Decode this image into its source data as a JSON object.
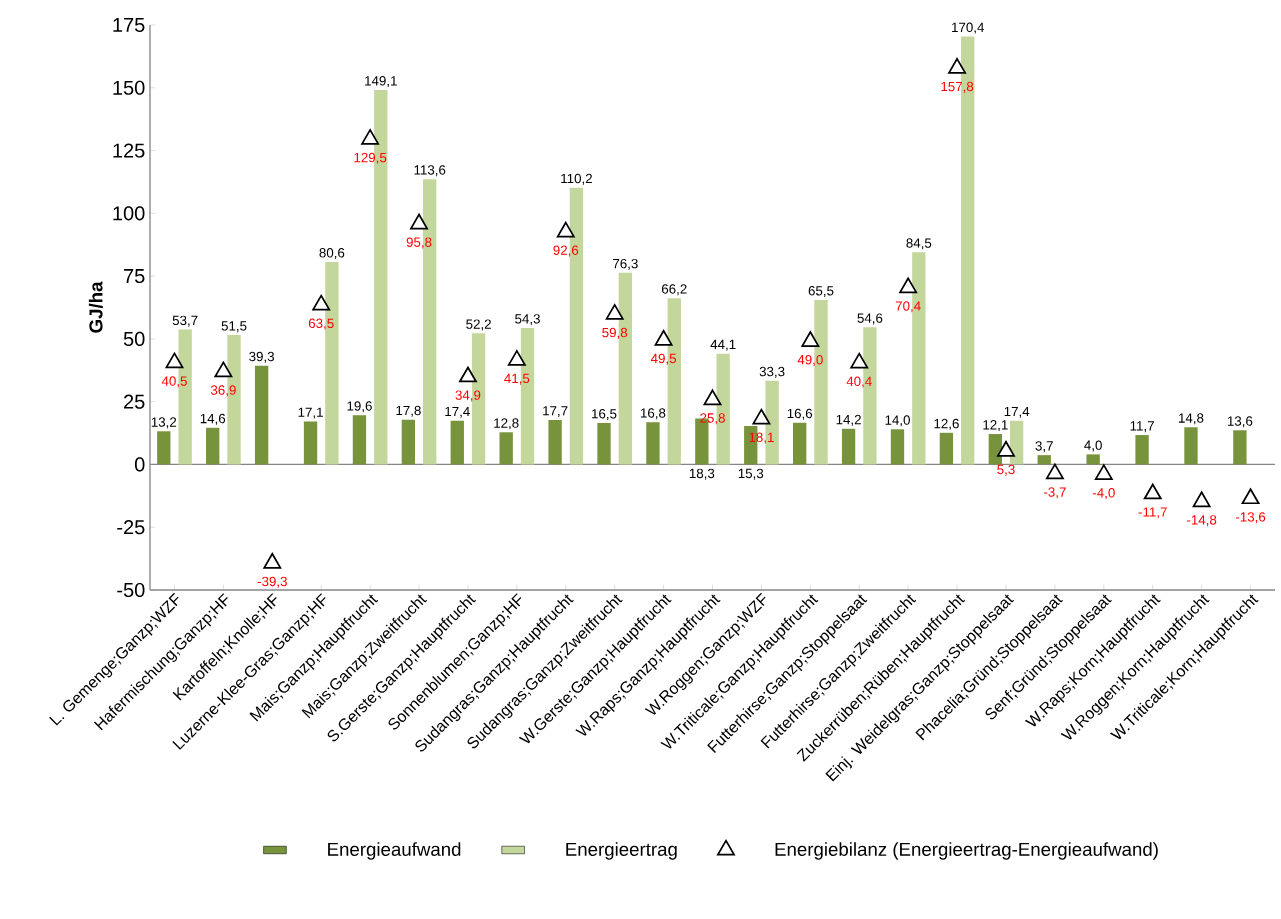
{
  "chart_data": {
    "type": "bar",
    "ylabel": "GJ/ha",
    "legend": "bottom",
    "ylim": [
      -50,
      175
    ],
    "yticks": [
      -50,
      -25,
      0,
      25,
      50,
      75,
      100,
      125,
      150,
      175
    ],
    "categories": [
      "L. Gemenge;Ganzp;WZF",
      "Hafermischung;Ganzp;HF",
      "Kartoffeln;Knolle;HF",
      "Luzerne-Klee-Gras;Ganzp;HF",
      "Mais;Ganzp;Hauptfrucht",
      "Mais;Ganzp;Zweitfrucht",
      "S.Gerste;Ganzp;Hauptfrucht",
      "Sonnenblumen;Ganzp;HF",
      "Sudangras;Ganzp;Hauptfrucht",
      "Sudangras;Ganzp;Zweitfrucht",
      "W.Gerste;Ganzp;Hauptfrucht",
      "W.Raps;Ganzp;Hauptfrucht",
      "W.Roggen;Ganzp;WZF",
      "W.Triticale;Ganzp;Hauptfrucht",
      "Futterhirse;Ganzp;Stoppelsaat",
      "Futterhirse;Ganzp;Zweitfrucht",
      "Zuckerrüben;Rüben;Hauptfrucht",
      "Einj. Weidelgras;Ganzp;Stoppelsaat",
      "Phacelia;Gründ;Stoppelsaat",
      "Senf;Gründ;Stoppelsaat",
      "W.Raps;Korn;Hauptfrucht",
      "W.Roggen;Korn;Hauptfrucht",
      "W.Triticale;Korn;Hauptfrucht"
    ],
    "series": [
      {
        "name": "Energieaufwand",
        "color": "#77933c",
        "values": [
          13.2,
          14.6,
          39.3,
          17.1,
          19.6,
          17.8,
          17.4,
          12.8,
          17.7,
          16.5,
          16.8,
          18.3,
          15.3,
          16.6,
          14.2,
          14.0,
          12.6,
          12.1,
          3.7,
          4.0,
          11.7,
          14.8,
          13.6
        ],
        "value_labels": [
          "13,2",
          "14,6",
          "39,3",
          "17,1",
          "19,6",
          "17,8",
          "17,4",
          "12,8",
          "17,7",
          "16,5",
          "16,8",
          "18,3",
          "15,3",
          "16,6",
          "14,2",
          "14,0",
          "12,6",
          "12,1",
          "3,7",
          "4,0",
          "11,7",
          "14,8",
          "13,6"
        ]
      },
      {
        "name": "Energieertrag",
        "color": "#c3d69b",
        "values": [
          53.7,
          51.5,
          null,
          80.6,
          149.1,
          113.6,
          52.2,
          54.3,
          110.2,
          76.3,
          66.2,
          44.1,
          33.3,
          65.5,
          54.6,
          84.5,
          170.4,
          17.4,
          null,
          null,
          null,
          null,
          null
        ],
        "value_labels": [
          "53,7",
          "51,5",
          null,
          "80,6",
          "149,1",
          "113,6",
          "52,2",
          "54,3",
          "110,2",
          "76,3",
          "66,2",
          "44,1",
          "33,3",
          "65,5",
          "54,6",
          "84,5",
          "170,4",
          "17,4",
          null,
          null,
          null,
          null,
          null
        ]
      },
      {
        "name": "Energiebilanz (Energieertrag-Energieaufwand)",
        "type": "scatter",
        "marker": "triangle",
        "color": "#000000",
        "values": [
          40.5,
          36.9,
          -39.3,
          63.5,
          129.5,
          95.8,
          34.9,
          41.5,
          92.6,
          59.8,
          49.5,
          25.8,
          18.1,
          49.0,
          40.4,
          70.4,
          157.8,
          5.3,
          -3.7,
          -4.0,
          -11.7,
          -14.8,
          -13.6
        ],
        "value_labels": [
          "40,5",
          "36,9",
          "-39,3",
          "63,5",
          "129,5",
          "95,8",
          "34,9",
          "41,5",
          "92,6",
          "59,8",
          "49,5",
          "25,8",
          "18,1",
          "49,0",
          "40,4",
          "70,4",
          "157,8",
          "5,3",
          "-3,7",
          "-4,0",
          "-11,7",
          "-14,8",
          "-13,6"
        ]
      }
    ]
  }
}
